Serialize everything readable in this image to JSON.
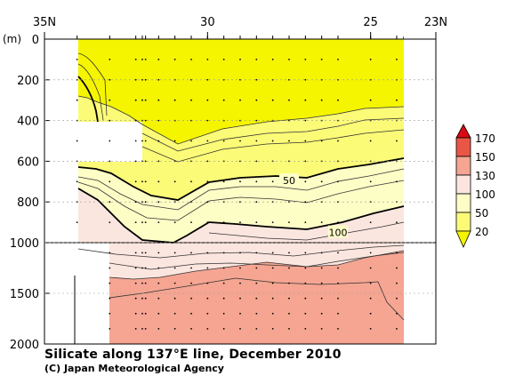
{
  "chart_data": {
    "type": "contour",
    "title": "Silicate along 137°E line, December 2010",
    "credit": "(C) Japan Meteorological Agency",
    "depth_unit_label": "(m)",
    "x_axis": {
      "range": [
        35,
        23
      ],
      "tick_labels": [
        {
          "lat": 35,
          "label": "35N"
        },
        {
          "lat": 30,
          "label": "30"
        },
        {
          "lat": 25,
          "label": "25"
        },
        {
          "lat": 23,
          "label": "23N"
        }
      ]
    },
    "y_axis": {
      "upper_ticks": [
        0,
        200,
        400,
        600,
        800,
        1000
      ],
      "lower_ticks": [
        1500,
        2000
      ],
      "break_depth": 1000,
      "range": [
        0,
        2000
      ]
    },
    "stations_lat": [
      34,
      33,
      32.2,
      32,
      31.9,
      31.5,
      31,
      30.5,
      30,
      29.5,
      29,
      28.5,
      28,
      27.5,
      27,
      26.5,
      26,
      25,
      24.2
    ],
    "contour_labels": [
      {
        "value": 50,
        "label": "50",
        "lat": 27.5,
        "depth": 695
      },
      {
        "value": 100,
        "label": "100",
        "lat": 26.0,
        "depth": 950
      }
    ],
    "colorbar": {
      "levels": [
        "20",
        "50",
        "100",
        "130",
        "150",
        "170"
      ],
      "colors": [
        "#f5f500",
        "#fbfb78",
        "#fdfdc6",
        "#fbe6df",
        "#f5a592",
        "#ea5646",
        "#db0a12"
      ]
    }
  }
}
